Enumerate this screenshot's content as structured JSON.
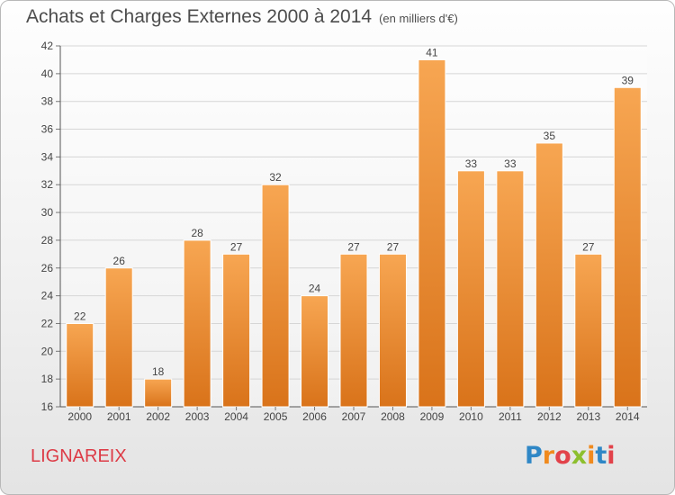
{
  "header": {
    "title": "Achats et Charges Externes 2000 à 2014",
    "subtitle": "(en milliers d'€)"
  },
  "footer": {
    "commune": "LIGNAREIX",
    "logo_text": "Proxiti"
  },
  "colors": {
    "bar_top": "#f7a652",
    "bar_bottom": "#d9731a",
    "commune": "#dd3b46",
    "logo_letters": [
      "#2f87c6",
      "#f08a1e",
      "#e2424a",
      "#8dbf2e",
      "#f08a1e",
      "#2f87c6",
      "#e2424a"
    ]
  },
  "chart_data": {
    "type": "bar",
    "categories": [
      "2000",
      "2001",
      "2002",
      "2003",
      "2004",
      "2005",
      "2006",
      "2007",
      "2008",
      "2009",
      "2010",
      "2011",
      "2012",
      "2013",
      "2014"
    ],
    "values": [
      22,
      26,
      18,
      28,
      27,
      32,
      24,
      27,
      27,
      41,
      33,
      33,
      35,
      27,
      39
    ],
    "ylim": [
      16,
      42
    ],
    "yticks": [
      16,
      18,
      20,
      22,
      24,
      26,
      28,
      30,
      32,
      34,
      36,
      38,
      40,
      42
    ],
    "grid": true
  }
}
